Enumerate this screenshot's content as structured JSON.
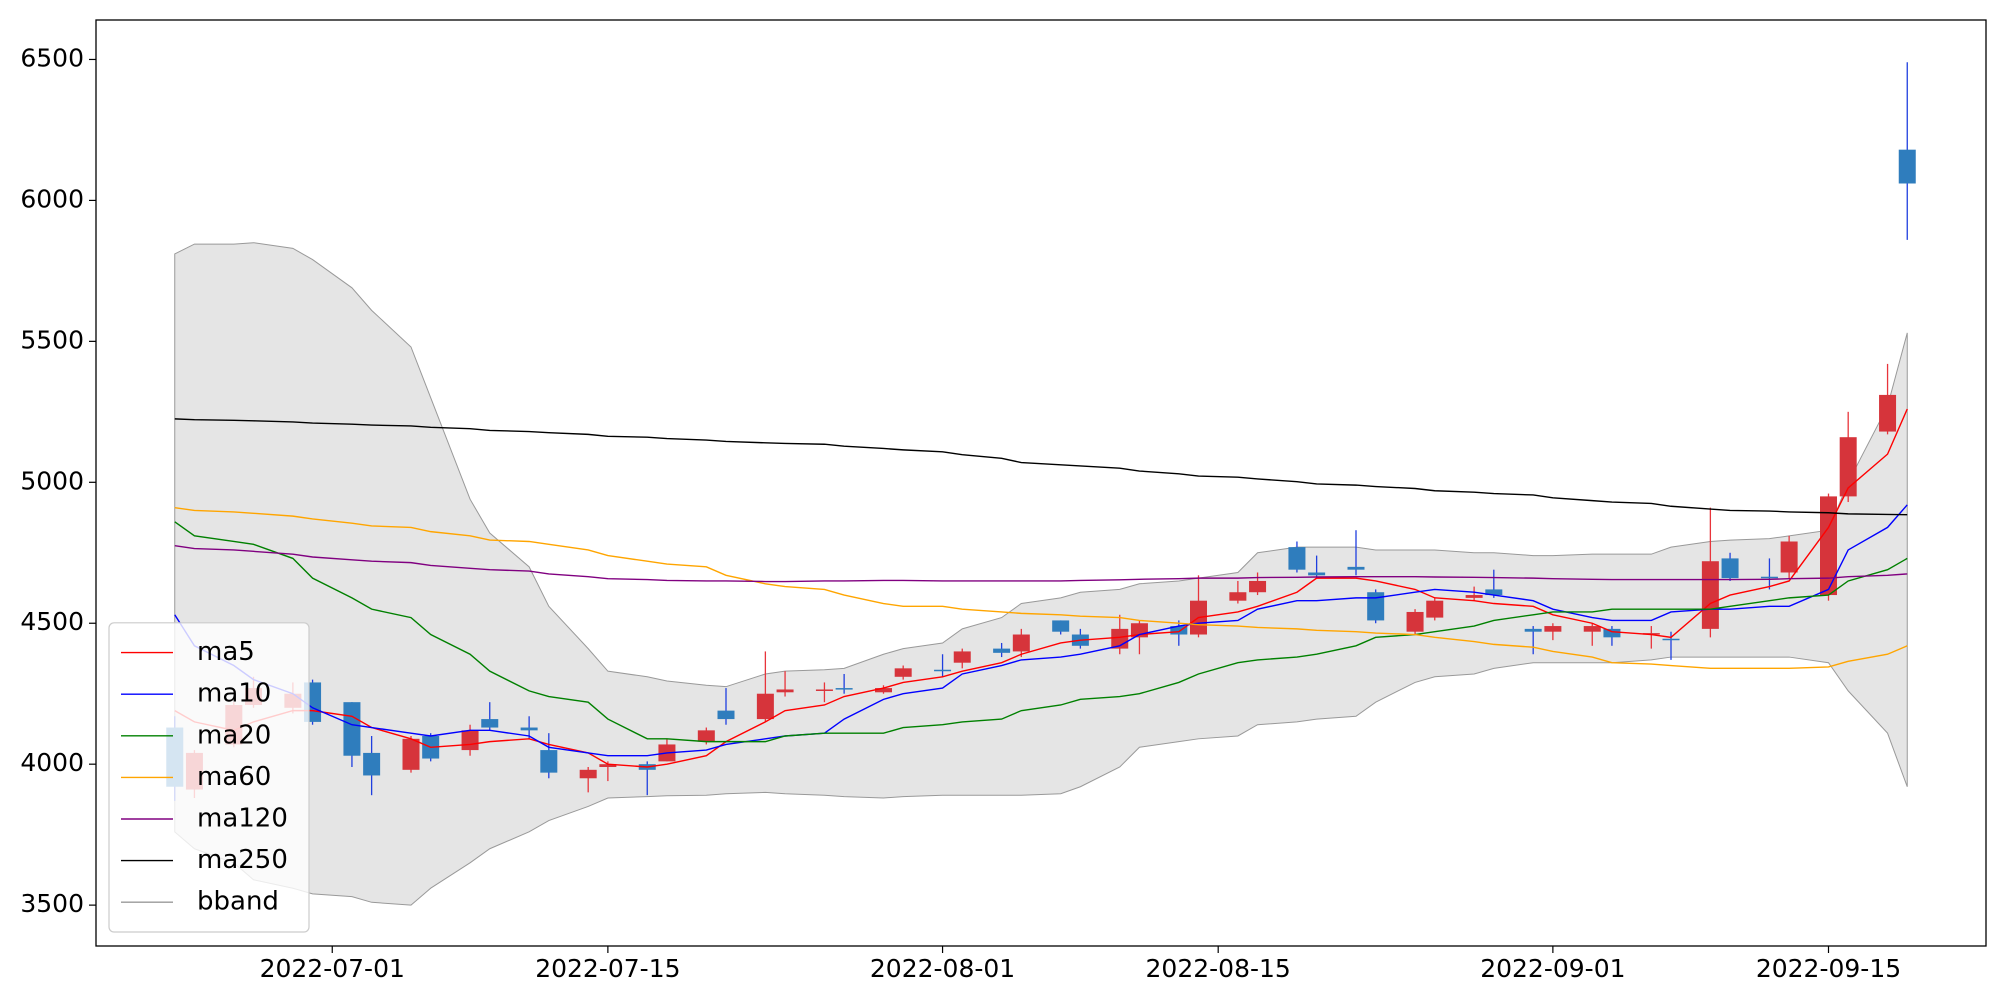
{
  "chart_data": {
    "type": "candlestick",
    "x": [
      "2022-06-23",
      "2022-06-24",
      "2022-06-26",
      "2022-06-27",
      "2022-06-29",
      "2022-06-30",
      "2022-07-02",
      "2022-07-03",
      "2022-07-05",
      "2022-07-06",
      "2022-07-08",
      "2022-07-09",
      "2022-07-11",
      "2022-07-12",
      "2022-07-14",
      "2022-07-15",
      "2022-07-17",
      "2022-07-18",
      "2022-07-20",
      "2022-07-21",
      "2022-07-23",
      "2022-07-24",
      "2022-07-26",
      "2022-07-27",
      "2022-07-29",
      "2022-07-30",
      "2022-08-01",
      "2022-08-02",
      "2022-08-04",
      "2022-08-05",
      "2022-08-07",
      "2022-08-08",
      "2022-08-10",
      "2022-08-11",
      "2022-08-13",
      "2022-08-14",
      "2022-08-16",
      "2022-08-17",
      "2022-08-19",
      "2022-08-20",
      "2022-08-22",
      "2022-08-23",
      "2022-08-25",
      "2022-08-26",
      "2022-08-28",
      "2022-08-29",
      "2022-08-31",
      "2022-09-01",
      "2022-09-03",
      "2022-09-04",
      "2022-09-06",
      "2022-09-07",
      "2022-09-09",
      "2022-09-10",
      "2022-09-12",
      "2022-09-13",
      "2022-09-15",
      "2022-09-16",
      "2022-09-18",
      "2022-09-19"
    ],
    "candles": {
      "up_color": "#d6343b",
      "down_color": "#2f7dbd",
      "up_wick_color": "#e8343b",
      "down_wick_color": "#1f3fdf",
      "open": [
        4130,
        3910,
        4070,
        4210,
        4200,
        4290,
        4220,
        4040,
        3980,
        4100,
        4050,
        4160,
        4130,
        4050,
        3950,
        3990,
        4000,
        4010,
        4080,
        4190,
        4160,
        4255,
        4260,
        4270,
        4255,
        4310,
        4335,
        4360,
        4410,
        4400,
        4510,
        4460,
        4410,
        4450,
        4490,
        4460,
        4580,
        4610,
        4770,
        4680,
        4700,
        4610,
        4470,
        4520,
        4590,
        4620,
        4480,
        4470,
        4470,
        4480,
        4460,
        4445,
        4480,
        4730,
        4665,
        4680,
        4600,
        4950,
        5180,
        6180
      ],
      "high": [
        4170,
        4050,
        4220,
        4310,
        4290,
        4300,
        4220,
        4100,
        4100,
        4110,
        4140,
        4220,
        4170,
        4110,
        3990,
        4010,
        4010,
        4090,
        4130,
        4270,
        4400,
        4330,
        4290,
        4320,
        4280,
        4350,
        4390,
        4410,
        4430,
        4480,
        4510,
        4480,
        4530,
        4510,
        4510,
        4670,
        4650,
        4680,
        4790,
        4740,
        4830,
        4620,
        4550,
        4590,
        4630,
        4690,
        4490,
        4500,
        4500,
        4490,
        4490,
        4470,
        4910,
        4750,
        4730,
        4810,
        4960,
        5250,
        5420,
        6490
      ],
      "low": [
        3870,
        3880,
        4060,
        4200,
        4180,
        4140,
        3990,
        3890,
        3970,
        4010,
        4030,
        4120,
        4090,
        3950,
        3900,
        3940,
        3890,
        4010,
        4070,
        4140,
        4150,
        4240,
        4220,
        4250,
        4250,
        4300,
        4310,
        4340,
        4380,
        4380,
        4460,
        4410,
        4390,
        4390,
        4420,
        4450,
        4570,
        4600,
        4680,
        4660,
        4670,
        4500,
        4460,
        4510,
        4580,
        4590,
        4390,
        4440,
        4420,
        4420,
        4410,
        4370,
        4450,
        4650,
        4620,
        4660,
        4580,
        4930,
        5170,
        5860
      ],
      "close": [
        3920,
        4040,
        4210,
        4270,
        4250,
        4150,
        4030,
        3960,
        4090,
        4020,
        4120,
        4130,
        4120,
        3970,
        3980,
        4000,
        3980,
        4070,
        4120,
        4160,
        4250,
        4265,
        4265,
        4265,
        4270,
        4340,
        4330,
        4400,
        4395,
        4460,
        4470,
        4420,
        4480,
        4500,
        4460,
        4580,
        4610,
        4650,
        4690,
        4670,
        4690,
        4510,
        4540,
        4580,
        4600,
        4600,
        4470,
        4490,
        4490,
        4450,
        4465,
        4440,
        4720,
        4660,
        4660,
        4790,
        4950,
        5160,
        5310,
        6060
      ]
    },
    "series": [
      {
        "name": "ma5",
        "color": "#ff0000",
        "values": [
          4190,
          4150,
          4120,
          4150,
          4190,
          4190,
          4170,
          4130,
          4090,
          4060,
          4070,
          4080,
          4090,
          4070,
          4040,
          4000,
          3990,
          4000,
          4030,
          4080,
          4150,
          4190,
          4210,
          4240,
          4270,
          4290,
          4310,
          4330,
          4360,
          4390,
          4430,
          4440,
          4450,
          4460,
          4470,
          4520,
          4540,
          4560,
          4610,
          4660,
          4660,
          4650,
          4620,
          4590,
          4580,
          4570,
          4560,
          4530,
          4500,
          4470,
          4460,
          4450,
          4570,
          4600,
          4630,
          4650,
          4840,
          4980,
          5100,
          5260
        ]
      },
      {
        "name": "ma10",
        "color": "#0000ff",
        "values": [
          4530,
          4420,
          4350,
          4300,
          4250,
          4200,
          4140,
          4130,
          4110,
          4100,
          4120,
          4120,
          4100,
          4060,
          4040,
          4030,
          4030,
          4040,
          4050,
          4070,
          4090,
          4100,
          4110,
          4160,
          4230,
          4250,
          4270,
          4320,
          4350,
          4370,
          4380,
          4390,
          4420,
          4460,
          4490,
          4500,
          4510,
          4550,
          4580,
          4580,
          4590,
          4590,
          4610,
          4620,
          4610,
          4600,
          4580,
          4550,
          4520,
          4510,
          4510,
          4540,
          4550,
          4550,
          4560,
          4560,
          4620,
          4760,
          4840,
          4920
        ]
      },
      {
        "name": "ma20",
        "color": "#008000",
        "values": [
          4860,
          4810,
          4790,
          4780,
          4730,
          4660,
          4590,
          4550,
          4520,
          4460,
          4390,
          4330,
          4260,
          4240,
          4220,
          4160,
          4090,
          4090,
          4080,
          4080,
          4080,
          4100,
          4110,
          4110,
          4110,
          4130,
          4140,
          4150,
          4160,
          4190,
          4210,
          4230,
          4240,
          4250,
          4290,
          4320,
          4360,
          4370,
          4380,
          4390,
          4420,
          4450,
          4460,
          4470,
          4490,
          4510,
          4530,
          4540,
          4540,
          4550,
          4550,
          4550,
          4550,
          4560,
          4580,
          4590,
          4600,
          4650,
          4690,
          4730
        ]
      },
      {
        "name": "ma60",
        "color": "#ffa500",
        "values": [
          4910,
          4900,
          4895,
          4890,
          4880,
          4870,
          4855,
          4845,
          4840,
          4825,
          4810,
          4795,
          4790,
          4780,
          4760,
          4740,
          4720,
          4710,
          4700,
          4670,
          4640,
          4630,
          4620,
          4600,
          4570,
          4560,
          4560,
          4550,
          4540,
          4535,
          4530,
          4525,
          4520,
          4510,
          4500,
          4495,
          4490,
          4485,
          4480,
          4475,
          4470,
          4465,
          4460,
          4450,
          4435,
          4425,
          4415,
          4400,
          4380,
          4360,
          4355,
          4350,
          4340,
          4340,
          4340,
          4340,
          4345,
          4365,
          4390,
          4420
        ]
      },
      {
        "name": "ma120",
        "color": "#800080",
        "values": [
          4775,
          4765,
          4760,
          4755,
          4745,
          4735,
          4725,
          4720,
          4715,
          4705,
          4695,
          4690,
          4685,
          4675,
          4665,
          4658,
          4655,
          4652,
          4650,
          4650,
          4648,
          4648,
          4650,
          4650,
          4652,
          4652,
          4650,
          4650,
          4650,
          4650,
          4650,
          4652,
          4654,
          4656,
          4658,
          4660,
          4660,
          4662,
          4663,
          4664,
          4665,
          4665,
          4665,
          4664,
          4663,
          4662,
          4660,
          4658,
          4656,
          4655,
          4655,
          4655,
          4655,
          4655,
          4656,
          4658,
          4660,
          4665,
          4670,
          4675
        ]
      },
      {
        "name": "ma250",
        "color": "#000000",
        "values": [
          5225,
          5222,
          5220,
          5218,
          5214,
          5210,
          5206,
          5203,
          5200,
          5195,
          5190,
          5184,
          5180,
          5176,
          5170,
          5163,
          5160,
          5155,
          5150,
          5145,
          5140,
          5138,
          5135,
          5128,
          5120,
          5115,
          5108,
          5098,
          5085,
          5070,
          5062,
          5058,
          5050,
          5040,
          5030,
          5022,
          5018,
          5012,
          5002,
          4994,
          4990,
          4985,
          4978,
          4970,
          4965,
          4960,
          4955,
          4945,
          4935,
          4930,
          4925,
          4915,
          4905,
          4900,
          4898,
          4895,
          4892,
          4888,
          4886,
          4885
        ]
      }
    ],
    "band": {
      "name": "bband",
      "color": "#999999",
      "fill": "#e5e5e5",
      "upper": [
        5810,
        5845,
        5845,
        5850,
        5830,
        5790,
        5690,
        5610,
        5480,
        5300,
        4940,
        4820,
        4700,
        4560,
        4410,
        4330,
        4310,
        4295,
        4280,
        4275,
        4320,
        4330,
        4335,
        4340,
        4390,
        4410,
        4430,
        4480,
        4520,
        4570,
        4590,
        4610,
        4620,
        4640,
        4650,
        4660,
        4680,
        4750,
        4770,
        4770,
        4770,
        4760,
        4760,
        4760,
        4750,
        4750,
        4740,
        4740,
        4745,
        4745,
        4745,
        4770,
        4790,
        4795,
        4800,
        4810,
        4830,
        5000,
        5270,
        5530
      ],
      "lower": [
        3760,
        3700,
        3650,
        3590,
        3560,
        3540,
        3530,
        3510,
        3500,
        3560,
        3650,
        3700,
        3760,
        3800,
        3850,
        3880,
        3885,
        3888,
        3890,
        3895,
        3900,
        3895,
        3890,
        3885,
        3880,
        3885,
        3890,
        3890,
        3890,
        3890,
        3895,
        3920,
        3990,
        4060,
        4080,
        4090,
        4100,
        4140,
        4150,
        4160,
        4170,
        4220,
        4290,
        4310,
        4320,
        4340,
        4360,
        4360,
        4360,
        4360,
        4370,
        4380,
        4380,
        4380,
        4380,
        4380,
        4360,
        4260,
        4110,
        3920
      ]
    },
    "xlim": [
      "2022-06-19",
      "2022-09-23"
    ],
    "xticks": [
      "2022-07-01",
      "2022-07-15",
      "2022-08-01",
      "2022-08-15",
      "2022-09-01",
      "2022-09-15"
    ],
    "ylim": [
      3355,
      6640
    ],
    "yticks": [
      3500,
      4000,
      4500,
      5000,
      5500,
      6000,
      6500
    ],
    "legend": "lower left"
  }
}
